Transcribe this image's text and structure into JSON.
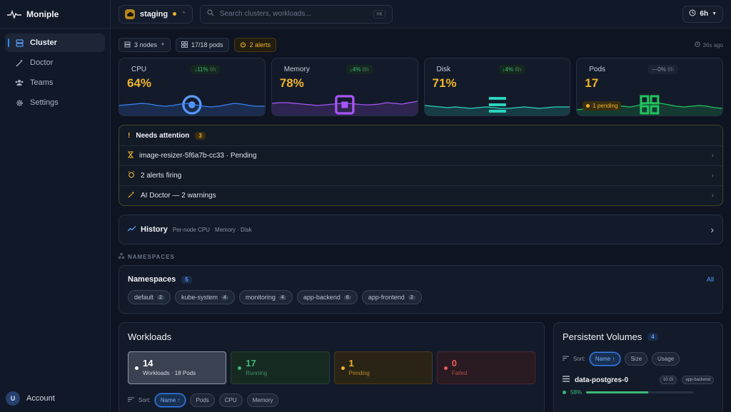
{
  "app": {
    "name": "Moniple"
  },
  "sidebar": {
    "items": [
      {
        "label": "Cluster",
        "icon": "server-icon",
        "active": true
      },
      {
        "label": "Doctor",
        "icon": "magic-wand-icon"
      },
      {
        "label": "Teams",
        "icon": "users-icon"
      },
      {
        "label": "Settings",
        "icon": "gear-icon"
      }
    ],
    "account": {
      "initial": "U",
      "label": "Account"
    }
  },
  "topbar": {
    "environment": "staging",
    "search_placeholder": "Search clusters, workloads...",
    "shortcut": "⌘K",
    "time_range": "6h"
  },
  "summary": {
    "nodes": "3 nodes",
    "pods": "17/18 pods",
    "alerts": "2 alerts",
    "updated": "36s ago"
  },
  "metrics": [
    {
      "label": "CPU",
      "value": "64%",
      "delta": "↓11%",
      "period": "6h",
      "color": "#3b82f6",
      "series": [
        14,
        15,
        16,
        17,
        16,
        14,
        13,
        14,
        16,
        17,
        15,
        13,
        12,
        13,
        15,
        17,
        16,
        14,
        13,
        13
      ]
    },
    {
      "label": "Memory",
      "value": "78%",
      "delta": "↓4%",
      "period": "6h",
      "color": "#a855f7",
      "series": [
        17,
        18,
        18,
        17,
        16,
        15,
        14,
        15,
        16,
        17,
        17,
        16,
        15,
        15,
        16,
        18,
        17,
        16,
        18,
        20
      ]
    },
    {
      "label": "Disk",
      "value": "71%",
      "delta": "↓4%",
      "period": "6h",
      "color": "#2dd4bf",
      "series": [
        14,
        13,
        12,
        11,
        12,
        11,
        10,
        11,
        12,
        11,
        10,
        10,
        11,
        12,
        11,
        10,
        11,
        12,
        12,
        12
      ]
    },
    {
      "label": "Pods",
      "value": "17",
      "delta": "—0%",
      "period": "6h",
      "color": "#22c55e",
      "series": [
        8,
        9,
        10,
        11,
        12,
        13,
        13,
        12,
        14,
        17,
        18,
        17,
        15,
        13,
        12,
        13,
        14,
        13,
        11,
        10
      ],
      "pending": "1 pending"
    }
  ],
  "attention": {
    "title": "Needs attention",
    "count": "3",
    "items": [
      {
        "label": "image-resizer-5f6a7b-cc33 · Pending",
        "icon": "hourglass-icon"
      },
      {
        "label": "2 alerts firing",
        "icon": "alarm-icon"
      },
      {
        "label": "AI Doctor — 2 warnings",
        "icon": "magic-wand-icon"
      }
    ]
  },
  "history": {
    "title": "History",
    "subtitle": "Per-node CPU · Memory · Disk"
  },
  "namespaces": {
    "section_label": "NAMESPACES",
    "title": "Namespaces",
    "count": "5",
    "all_link": "All",
    "items": [
      {
        "name": "default",
        "count": "2"
      },
      {
        "name": "kube-system",
        "count": "4"
      },
      {
        "name": "monitoring",
        "count": "4"
      },
      {
        "name": "app-backend",
        "count": "6"
      },
      {
        "name": "app-frontend",
        "count": "2"
      }
    ]
  },
  "workloads": {
    "title": "Workloads",
    "stats": [
      {
        "value": "14",
        "label": "Workloads · 18 Pods"
      },
      {
        "value": "17",
        "label": "Running"
      },
      {
        "value": "1",
        "label": "Pending"
      },
      {
        "value": "0",
        "label": "Failed"
      }
    ],
    "sort_label": "Sort:",
    "sort_options": [
      "Name ↑",
      "Pods",
      "CPU",
      "Memory"
    ]
  },
  "volumes": {
    "title": "Persistent Volumes",
    "count": "4",
    "sort_label": "Sort:",
    "sort_options": [
      "Name ↑",
      "Size",
      "Usage"
    ],
    "item": {
      "name": "data-postgres-0",
      "size": "10 Gi",
      "namespace": "app-backend",
      "usage": "58%",
      "usage_fraction": 0.58
    }
  }
}
